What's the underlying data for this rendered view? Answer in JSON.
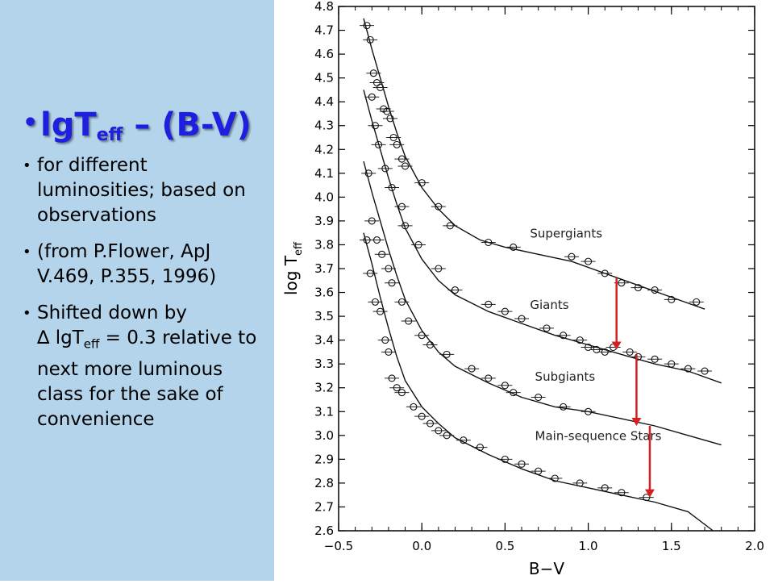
{
  "slide": {
    "title_main": "lgT",
    "title_sub": "eff",
    "title_rest": " – (B-V)",
    "bullets": [
      {
        "text": "for different luminosities; based on observations"
      },
      {
        "text": "(from P.Flower, ApJ V.469, P.355, 1996)"
      }
    ],
    "bullet3_a": "Shifted down by",
    "bullet3_b": "∆ lgT",
    "bullet3_sub": "eff",
    "bullet3_c": " = 0.3 relative to next more luminous class for the sake of convenience"
  },
  "colors": {
    "panel_bg": "#b3d4ea",
    "title": "#1f1fe0",
    "arrow": "#d42020"
  },
  "chart_data": {
    "type": "scatter",
    "xlabel": "B−V",
    "ylabel_main": "log T",
    "ylabel_sub": "eff",
    "xlim": [
      -0.5,
      2.0
    ],
    "ylim": [
      2.6,
      4.8
    ],
    "xticks": [
      "−0.5",
      "0.0",
      "0.5",
      "1.0",
      "1.5",
      "2.0"
    ],
    "yticks": [
      "2.6",
      "2.7",
      "2.8",
      "2.9",
      "3.0",
      "3.1",
      "3.2",
      "3.3",
      "3.4",
      "3.5",
      "3.6",
      "3.7",
      "3.8",
      "3.9",
      "4.0",
      "4.1",
      "4.2",
      "4.3",
      "4.4",
      "4.5",
      "4.6",
      "4.7",
      "4.8"
    ],
    "series": [
      {
        "name": "Supergiants",
        "label_x": 0.65,
        "label_y": 3.83,
        "curve": [
          [
            -0.35,
            4.75
          ],
          [
            -0.3,
            4.62
          ],
          [
            -0.25,
            4.5
          ],
          [
            -0.2,
            4.38
          ],
          [
            -0.15,
            4.27
          ],
          [
            -0.1,
            4.17
          ],
          [
            0.0,
            4.04
          ],
          [
            0.1,
            3.95
          ],
          [
            0.2,
            3.88
          ],
          [
            0.35,
            3.82
          ],
          [
            0.5,
            3.79
          ],
          [
            0.7,
            3.76
          ],
          [
            0.9,
            3.73
          ],
          [
            1.1,
            3.68
          ],
          [
            1.3,
            3.63
          ],
          [
            1.5,
            3.58
          ],
          [
            1.7,
            3.53
          ]
        ],
        "points": [
          [
            -0.33,
            4.72
          ],
          [
            -0.31,
            4.66
          ],
          [
            -0.29,
            4.52
          ],
          [
            -0.27,
            4.48
          ],
          [
            -0.25,
            4.46
          ],
          [
            -0.23,
            4.37
          ],
          [
            -0.21,
            4.36
          ],
          [
            -0.19,
            4.33
          ],
          [
            -0.17,
            4.25
          ],
          [
            -0.15,
            4.22
          ],
          [
            -0.12,
            4.16
          ],
          [
            -0.1,
            4.13
          ],
          [
            0.0,
            4.06
          ],
          [
            0.1,
            3.96
          ],
          [
            0.17,
            3.88
          ],
          [
            0.4,
            3.81
          ],
          [
            0.55,
            3.79
          ],
          [
            0.9,
            3.75
          ],
          [
            1.0,
            3.73
          ],
          [
            1.1,
            3.68
          ],
          [
            1.2,
            3.64
          ],
          [
            1.3,
            3.62
          ],
          [
            1.4,
            3.61
          ],
          [
            1.5,
            3.57
          ],
          [
            1.65,
            3.56
          ]
        ]
      },
      {
        "name": "Giants",
        "label_x": 0.65,
        "label_y": 3.53,
        "curve": [
          [
            -0.35,
            4.45
          ],
          [
            -0.3,
            4.32
          ],
          [
            -0.25,
            4.2
          ],
          [
            -0.2,
            4.08
          ],
          [
            -0.15,
            3.97
          ],
          [
            -0.1,
            3.87
          ],
          [
            0.0,
            3.74
          ],
          [
            0.1,
            3.65
          ],
          [
            0.2,
            3.59
          ],
          [
            0.4,
            3.52
          ],
          [
            0.6,
            3.47
          ],
          [
            0.8,
            3.42
          ],
          [
            1.0,
            3.38
          ],
          [
            1.2,
            3.34
          ],
          [
            1.4,
            3.3
          ],
          [
            1.6,
            3.27
          ],
          [
            1.8,
            3.22
          ]
        ],
        "points": [
          [
            -0.3,
            4.42
          ],
          [
            -0.28,
            4.3
          ],
          [
            -0.26,
            4.22
          ],
          [
            -0.22,
            4.12
          ],
          [
            -0.18,
            4.04
          ],
          [
            -0.12,
            3.96
          ],
          [
            -0.1,
            3.88
          ],
          [
            -0.02,
            3.8
          ],
          [
            0.1,
            3.7
          ],
          [
            0.2,
            3.61
          ],
          [
            0.4,
            3.55
          ],
          [
            0.5,
            3.52
          ],
          [
            0.6,
            3.49
          ],
          [
            0.75,
            3.45
          ],
          [
            0.85,
            3.42
          ],
          [
            0.95,
            3.4
          ],
          [
            1.0,
            3.37
          ],
          [
            1.05,
            3.36
          ],
          [
            1.1,
            3.35
          ],
          [
            1.15,
            3.37
          ],
          [
            1.25,
            3.35
          ],
          [
            1.3,
            3.33
          ],
          [
            1.4,
            3.32
          ],
          [
            1.5,
            3.3
          ],
          [
            1.6,
            3.28
          ],
          [
            1.7,
            3.27
          ]
        ]
      },
      {
        "name": "Subgiants",
        "label_x": 0.68,
        "label_y": 3.23,
        "curve": [
          [
            -0.35,
            4.15
          ],
          [
            -0.3,
            4.02
          ],
          [
            -0.25,
            3.9
          ],
          [
            -0.2,
            3.78
          ],
          [
            -0.15,
            3.67
          ],
          [
            -0.1,
            3.57
          ],
          [
            0.0,
            3.44
          ],
          [
            0.1,
            3.35
          ],
          [
            0.2,
            3.29
          ],
          [
            0.4,
            3.22
          ],
          [
            0.6,
            3.16
          ],
          [
            0.8,
            3.12
          ],
          [
            1.0,
            3.1
          ],
          [
            1.2,
            3.07
          ],
          [
            1.4,
            3.04
          ],
          [
            1.6,
            3.0
          ],
          [
            1.8,
            2.96
          ]
        ],
        "points": [
          [
            -0.32,
            4.1
          ],
          [
            -0.3,
            3.9
          ],
          [
            -0.27,
            3.82
          ],
          [
            -0.24,
            3.76
          ],
          [
            -0.2,
            3.7
          ],
          [
            -0.18,
            3.64
          ],
          [
            -0.12,
            3.56
          ],
          [
            -0.08,
            3.48
          ],
          [
            0.0,
            3.42
          ],
          [
            0.05,
            3.38
          ],
          [
            0.15,
            3.34
          ],
          [
            0.3,
            3.28
          ],
          [
            0.4,
            3.24
          ],
          [
            0.5,
            3.21
          ],
          [
            0.55,
            3.18
          ],
          [
            0.7,
            3.16
          ],
          [
            0.85,
            3.12
          ],
          [
            1.0,
            3.1
          ]
        ]
      },
      {
        "name": "Main-sequence Stars",
        "label_x": 0.68,
        "label_y": 2.98,
        "curve": [
          [
            -0.35,
            3.85
          ],
          [
            -0.3,
            3.72
          ],
          [
            -0.25,
            3.58
          ],
          [
            -0.2,
            3.45
          ],
          [
            -0.15,
            3.33
          ],
          [
            -0.1,
            3.23
          ],
          [
            0.0,
            3.12
          ],
          [
            0.1,
            3.05
          ],
          [
            0.2,
            2.99
          ],
          [
            0.4,
            2.92
          ],
          [
            0.6,
            2.86
          ],
          [
            0.8,
            2.81
          ],
          [
            1.0,
            2.78
          ],
          [
            1.2,
            2.75
          ],
          [
            1.4,
            2.72
          ],
          [
            1.6,
            2.68
          ],
          [
            1.75,
            2.6
          ]
        ],
        "points": [
          [
            -0.33,
            3.82
          ],
          [
            -0.31,
            3.68
          ],
          [
            -0.28,
            3.56
          ],
          [
            -0.25,
            3.52
          ],
          [
            -0.22,
            3.4
          ],
          [
            -0.2,
            3.35
          ],
          [
            -0.18,
            3.24
          ],
          [
            -0.15,
            3.2
          ],
          [
            -0.12,
            3.18
          ],
          [
            -0.05,
            3.12
          ],
          [
            0.0,
            3.08
          ],
          [
            0.05,
            3.05
          ],
          [
            0.1,
            3.02
          ],
          [
            0.15,
            3.0
          ],
          [
            0.25,
            2.98
          ],
          [
            0.35,
            2.95
          ],
          [
            0.5,
            2.9
          ],
          [
            0.6,
            2.88
          ],
          [
            0.7,
            2.85
          ],
          [
            0.8,
            2.82
          ],
          [
            0.95,
            2.8
          ],
          [
            1.1,
            2.78
          ],
          [
            1.2,
            2.76
          ],
          [
            1.35,
            2.74
          ]
        ]
      }
    ],
    "arrows": [
      {
        "x": 1.17,
        "from": 3.66,
        "to": 3.36
      },
      {
        "x": 1.29,
        "from": 3.34,
        "to": 3.04
      },
      {
        "x": 1.37,
        "from": 3.04,
        "to": 2.74
      }
    ]
  }
}
